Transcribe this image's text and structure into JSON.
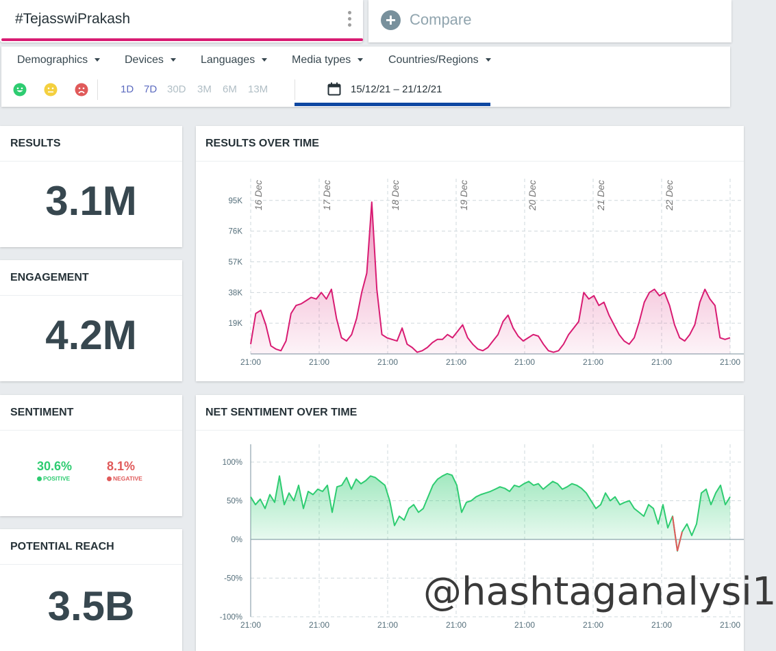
{
  "search": {
    "term": "#TejasswiPrakash"
  },
  "compare": {
    "label": "Compare"
  },
  "filters": {
    "items": [
      {
        "label": "Demographics"
      },
      {
        "label": "Devices"
      },
      {
        "label": "Languages"
      },
      {
        "label": "Media types"
      },
      {
        "label": "Countries/Regions"
      }
    ],
    "ranges": [
      "1D",
      "7D",
      "30D",
      "3M",
      "6M",
      "13M"
    ],
    "date_range": "15/12/21 – 21/12/21"
  },
  "colors": {
    "positive": "#2ecc71",
    "neutral": "#f4d03f",
    "negative": "#e05a5a",
    "results_line": "#d81b72",
    "accent": "#0d47a1"
  },
  "stats": {
    "results": {
      "title": "RESULTS",
      "value": "3.1M"
    },
    "engagement": {
      "title": "ENGAGEMENT",
      "value": "4.2M"
    },
    "sentiment": {
      "title": "SENTIMENT",
      "positive_value": "30.6%",
      "positive_label": "POSITIVE",
      "negative_value": "8.1%",
      "negative_label": "NEGATIVE"
    },
    "reach": {
      "title": "POTENTIAL REACH",
      "value": "3.5B"
    }
  },
  "charts": {
    "results_title": "RESULTS OVER TIME",
    "sentiment_title": "NET SENTIMENT OVER TIME"
  },
  "watermark": "@hashtaganalysi1",
  "chart_data": [
    {
      "type": "area",
      "title": "RESULTS OVER TIME",
      "ylim": [
        0,
        100000
      ],
      "yticks": [
        "95K",
        "76K",
        "57K",
        "38K",
        "19K"
      ],
      "ytick_values": [
        95000,
        76000,
        57000,
        38000,
        19000
      ],
      "xticks": [
        "21:00",
        "21:00",
        "21:00",
        "21:00",
        "21:00",
        "21:00",
        "21:00",
        "21:00"
      ],
      "day_labels": [
        "16 Dec",
        "17 Dec",
        "18 Dec",
        "19 Dec",
        "20 Dec",
        "21 Dec",
        "22 Dec"
      ],
      "values": [
        6000,
        25000,
        27000,
        18000,
        5000,
        3000,
        2000,
        8000,
        25000,
        30000,
        31000,
        33000,
        35000,
        34000,
        38000,
        34000,
        40000,
        22000,
        10000,
        8000,
        12000,
        22000,
        38000,
        50000,
        94000,
        40000,
        12000,
        10000,
        9000,
        8000,
        16000,
        6000,
        4000,
        1000,
        2000,
        4000,
        7000,
        9000,
        9000,
        12000,
        10000,
        14000,
        18000,
        10000,
        6000,
        3000,
        2000,
        4000,
        8000,
        12000,
        20000,
        24000,
        16000,
        11000,
        8000,
        10000,
        12000,
        11000,
        6000,
        2000,
        1000,
        2000,
        6000,
        12000,
        16000,
        20000,
        38000,
        34000,
        36000,
        30000,
        32000,
        24000,
        18000,
        12000,
        8000,
        6000,
        10000,
        20000,
        32000,
        38000,
        40000,
        36000,
        38000,
        30000,
        18000,
        10000,
        8000,
        12000,
        18000,
        32000,
        40000,
        34000,
        30000,
        10000,
        9000,
        10000
      ],
      "color": "#d81b72"
    },
    {
      "type": "area",
      "title": "NET SENTIMENT OVER TIME",
      "ylim": [
        -100,
        100
      ],
      "yticks": [
        "100%",
        "50%",
        "0%",
        "-50%",
        "-100%"
      ],
      "ytick_values": [
        100,
        50,
        0,
        -50,
        -100
      ],
      "xticks": [
        "21:00",
        "21:00",
        "21:00",
        "21:00",
        "21:00",
        "21:00",
        "21:00",
        "21:00"
      ],
      "values": [
        55,
        45,
        52,
        40,
        58,
        48,
        82,
        45,
        60,
        50,
        70,
        40,
        62,
        58,
        65,
        62,
        70,
        35,
        68,
        70,
        80,
        65,
        78,
        72,
        76,
        82,
        80,
        75,
        70,
        50,
        18,
        30,
        25,
        40,
        45,
        35,
        40,
        55,
        70,
        78,
        82,
        85,
        83,
        70,
        35,
        48,
        50,
        55,
        58,
        60,
        62,
        65,
        68,
        66,
        62,
        70,
        68,
        72,
        75,
        70,
        72,
        65,
        70,
        75,
        72,
        65,
        68,
        72,
        70,
        66,
        60,
        50,
        40,
        45,
        60,
        50,
        55,
        45,
        48,
        50,
        40,
        35,
        30,
        45,
        40,
        20,
        45,
        15,
        30,
        -15,
        10,
        20,
        5,
        20,
        60,
        65,
        45,
        60,
        70,
        45,
        55
      ],
      "color": "#2ecc71",
      "negative_color": "#e05a5a"
    }
  ]
}
